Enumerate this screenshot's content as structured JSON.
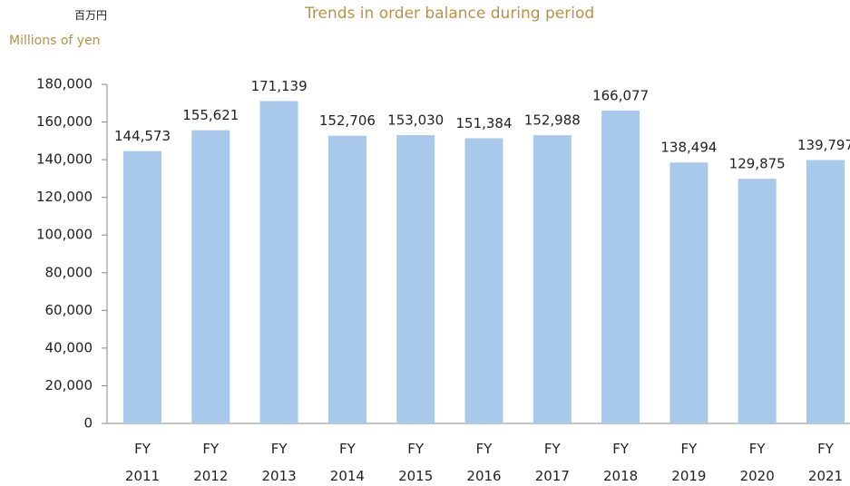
{
  "chart_data": {
    "type": "bar",
    "title": "Trends in order balance during period",
    "unit_label_ja": "百万円",
    "y_label": "Millions of yen",
    "categories": [
      "FY 2011",
      "FY 2012",
      "FY 2013",
      "FY 2014",
      "FY 2015",
      "FY 2016",
      "FY 2017",
      "FY 2018",
      "FY 2019",
      "FY 2020",
      "FY 2021"
    ],
    "values": [
      144573,
      155621,
      171139,
      152706,
      153030,
      151384,
      152988,
      166077,
      138494,
      129875,
      139797
    ],
    "value_labels": [
      "144,573",
      "155,621",
      "171,139",
      "152,706",
      "153,030",
      "151,384",
      "152,988",
      "166,077",
      "138,494",
      "129,875",
      "139,797"
    ],
    "color": "#a9c9ea",
    "ylim": [
      0,
      180000
    ],
    "yticks": [
      0,
      {
        "value": 20000,
        "label": "20,000"
      },
      {
        "value": 40000,
        "label": "40,000"
      },
      {
        "value": 60000,
        "label": "60,000"
      },
      {
        "value": 80000,
        "label": "80,000"
      },
      {
        "value": 100000,
        "label": "100,000"
      },
      {
        "value": 120000,
        "label": "120,000"
      },
      {
        "value": 140000,
        "label": "140,000"
      },
      {
        "value": 160000,
        "label": "160,000"
      },
      {
        "value": 180000,
        "label": "180,000"
      }
    ],
    "grid": false
  }
}
